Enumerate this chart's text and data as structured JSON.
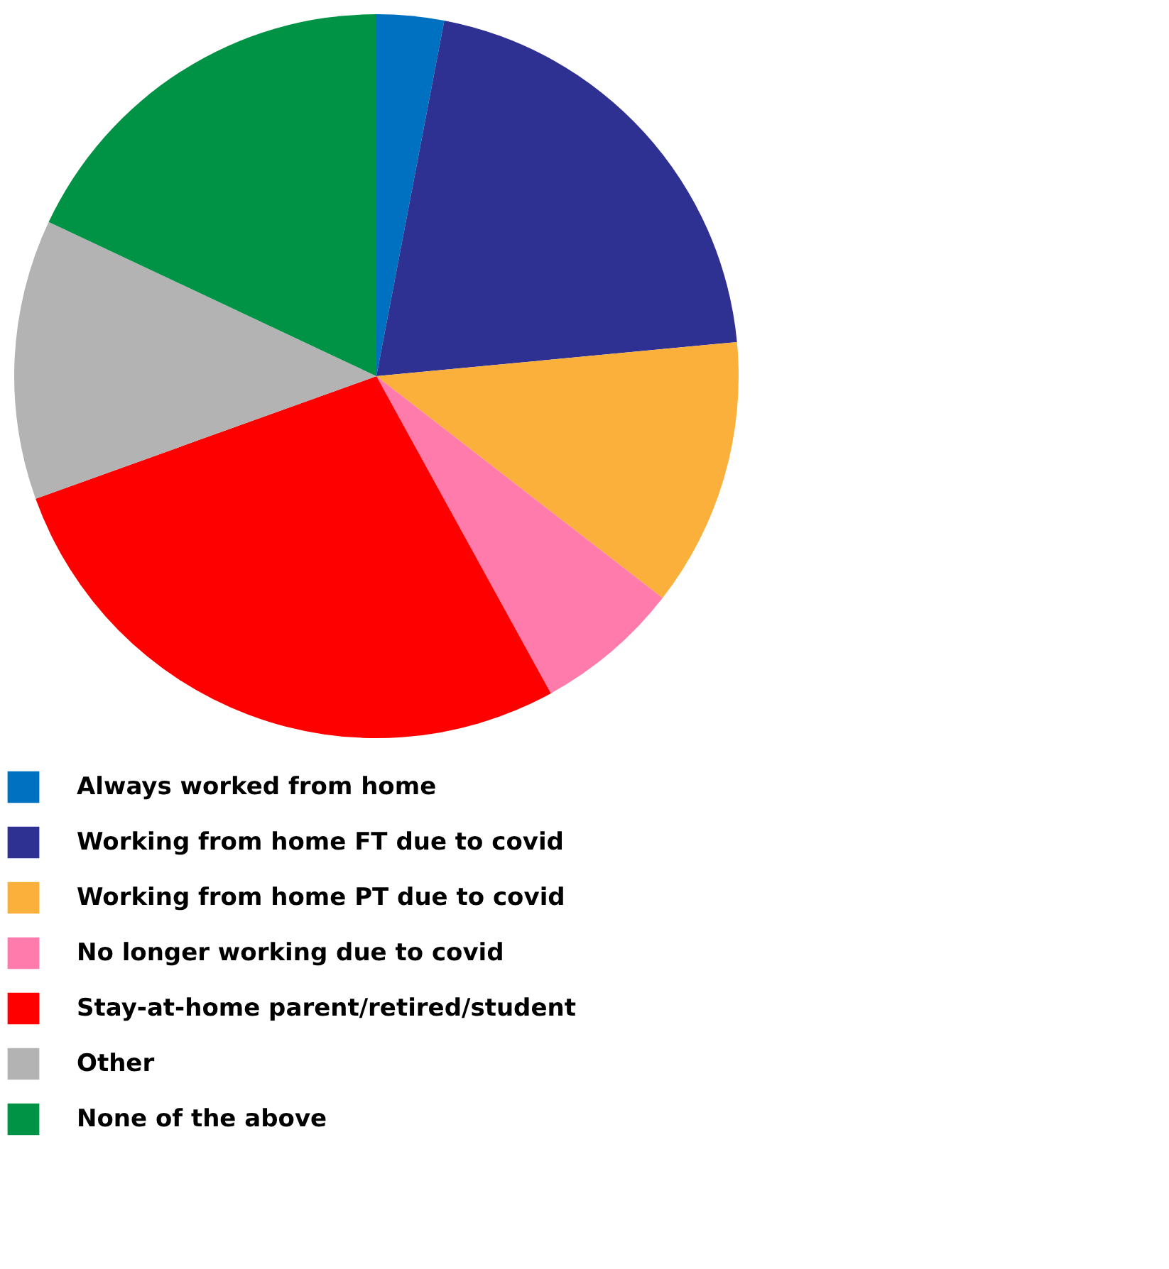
{
  "chart_data": {
    "type": "pie",
    "categories": [
      "Always worked from home",
      "Working from home FT due to covid",
      "Working from home PT due to covid",
      "No longer working due to covid",
      "Stay-at-home parent/retired/student",
      "Other",
      "None of the above"
    ],
    "values": [
      3,
      20.5,
      12,
      6.5,
      27.5,
      12.5,
      18
    ],
    "colors": [
      "#0070c0",
      "#2e3192",
      "#fbb03b",
      "#ff7bac",
      "#ff0000",
      "#b3b3b3",
      "#009245"
    ],
    "legend": "bottom"
  }
}
